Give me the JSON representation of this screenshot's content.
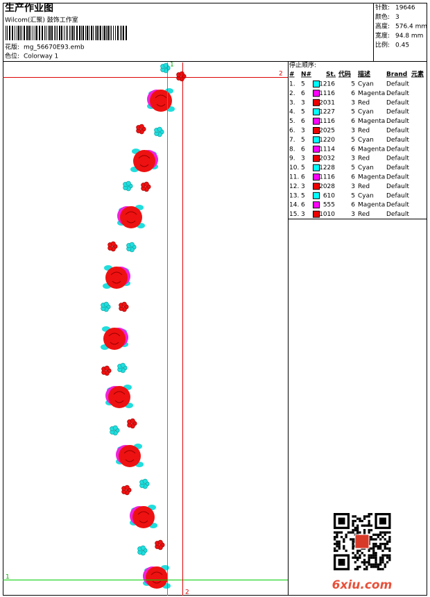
{
  "header": {
    "title": "生产作业图",
    "studio": "Wilcom(汇聚) 鼓饰工作室",
    "design_label": "花版:",
    "design": "mg_56670E93.emb",
    "colorway_label": "色位:",
    "colorway": "Colorway 1"
  },
  "info": [
    {
      "label": "针数:",
      "value": "19646"
    },
    {
      "label": "颜色:",
      "value": "3"
    },
    {
      "label": "高度:",
      "value": "576.4 mm"
    },
    {
      "label": "宽度:",
      "value": "94.8 mm"
    },
    {
      "label": "比例:",
      "value": "0.45"
    }
  ],
  "guides": {
    "green_top": "1",
    "red_right": "2",
    "green_left": "1",
    "red_bottom": "2"
  },
  "sequence": {
    "title": "停止顺序:",
    "columns": [
      "#",
      "N#",
      "St.",
      "代码",
      "描述",
      "Brand",
      "元素"
    ],
    "rows": [
      {
        "no": "1.",
        "needle": "5",
        "color": "#00ffff",
        "stitches": "1216",
        "code": "5",
        "description": "Cyan",
        "brand": "Default"
      },
      {
        "no": "2.",
        "needle": "6",
        "color": "#ff00ff",
        "stitches": "1116",
        "code": "6",
        "description": "Magenta",
        "brand": "Default"
      },
      {
        "no": "3.",
        "needle": "3",
        "color": "#ee0000",
        "stitches": "2031",
        "code": "3",
        "description": "Red",
        "brand": "Default"
      },
      {
        "no": "4.",
        "needle": "5",
        "color": "#00ffff",
        "stitches": "1227",
        "code": "5",
        "description": "Cyan",
        "brand": "Default"
      },
      {
        "no": "5.",
        "needle": "6",
        "color": "#ff00ff",
        "stitches": "1116",
        "code": "6",
        "description": "Magenta",
        "brand": "Default"
      },
      {
        "no": "6.",
        "needle": "3",
        "color": "#ee0000",
        "stitches": "2025",
        "code": "3",
        "description": "Red",
        "brand": "Default"
      },
      {
        "no": "7.",
        "needle": "5",
        "color": "#00ffff",
        "stitches": "1220",
        "code": "5",
        "description": "Cyan",
        "brand": "Default"
      },
      {
        "no": "8.",
        "needle": "6",
        "color": "#ff00ff",
        "stitches": "1114",
        "code": "6",
        "description": "Magenta",
        "brand": "Default"
      },
      {
        "no": "9.",
        "needle": "3",
        "color": "#ee0000",
        "stitches": "2032",
        "code": "3",
        "description": "Red",
        "brand": "Default"
      },
      {
        "no": "10.",
        "needle": "5",
        "color": "#00ffff",
        "stitches": "1228",
        "code": "5",
        "description": "Cyan",
        "brand": "Default"
      },
      {
        "no": "11.",
        "needle": "6",
        "color": "#ff00ff",
        "stitches": "1116",
        "code": "6",
        "description": "Magenta",
        "brand": "Default"
      },
      {
        "no": "12.",
        "needle": "3",
        "color": "#ee0000",
        "stitches": "2028",
        "code": "3",
        "description": "Red",
        "brand": "Default"
      },
      {
        "no": "13.",
        "needle": "5",
        "color": "#00ffff",
        "stitches": "610",
        "code": "5",
        "description": "Cyan",
        "brand": "Default"
      },
      {
        "no": "14.",
        "needle": "6",
        "color": "#ff00ff",
        "stitches": "555",
        "code": "6",
        "description": "Magenta",
        "brand": "Default"
      },
      {
        "no": "15.",
        "needle": "3",
        "color": "#ee0000",
        "stitches": "1010",
        "code": "3",
        "description": "Red",
        "brand": "Default"
      }
    ]
  },
  "watermark": "6xiu.com"
}
